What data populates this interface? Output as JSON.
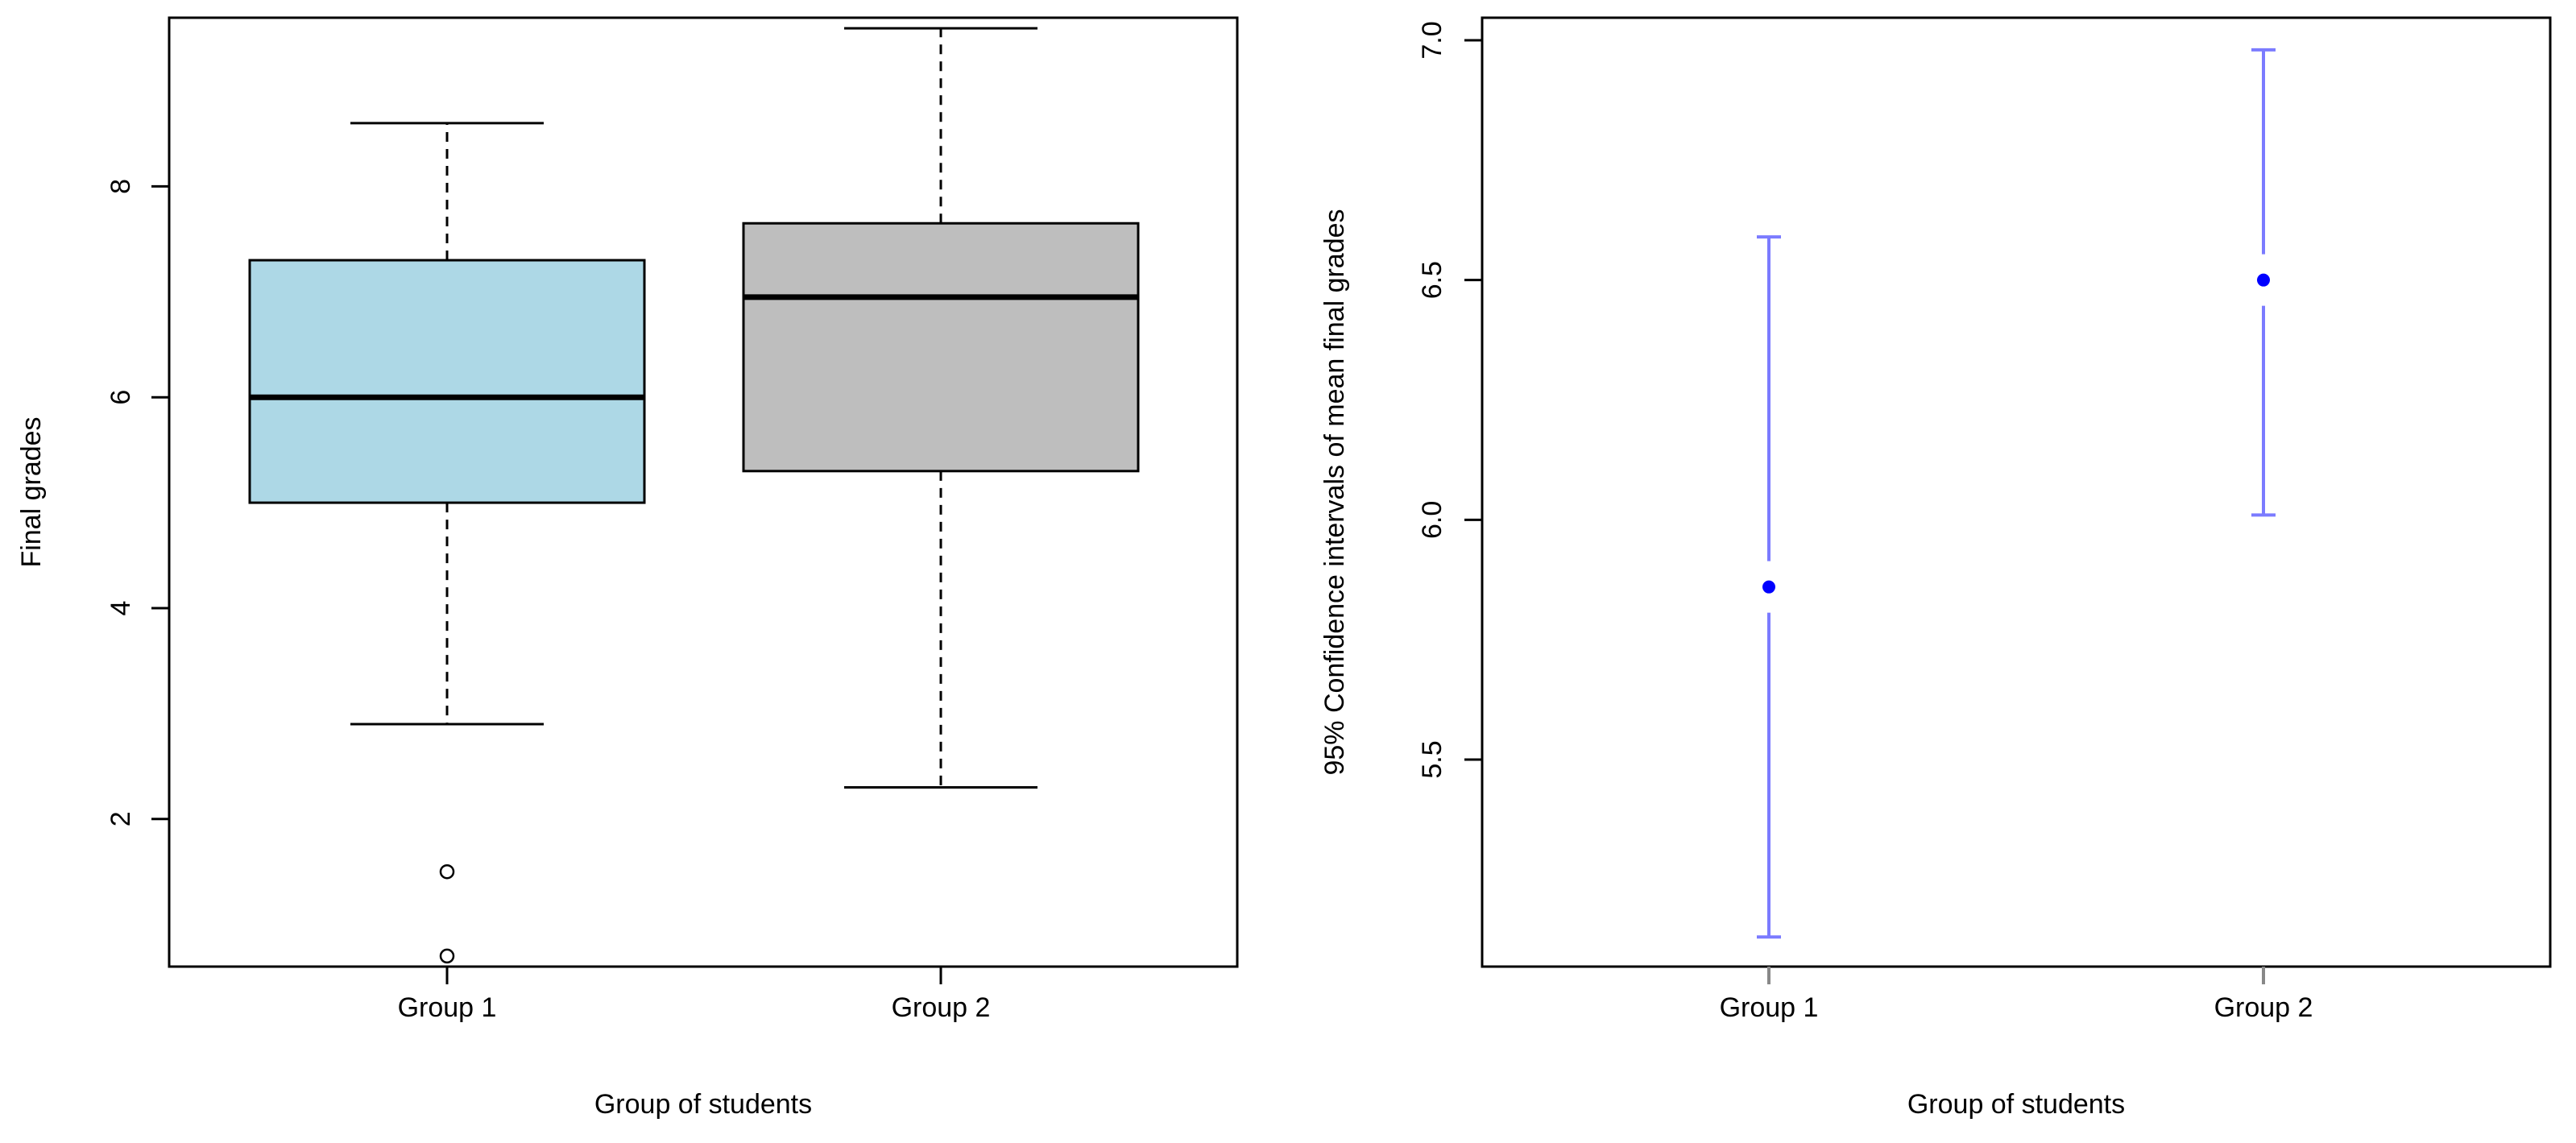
{
  "chart_data": [
    {
      "type": "box",
      "title": "",
      "xlabel": "Group of students",
      "ylabel": "Final grades",
      "categories": [
        "Group 1",
        "Group 2"
      ],
      "ylim": [
        0.6,
        9.6
      ],
      "yticks": [
        "2",
        "4",
        "6",
        "8"
      ],
      "grid": false,
      "boxes": [
        {
          "category": "Group 1",
          "whisker_low": 2.9,
          "q1": 5.0,
          "median": 6.0,
          "q3": 7.3,
          "whisker_high": 8.6,
          "outliers": [
            1.5,
            0.7
          ],
          "fill": "#add8e6"
        },
        {
          "category": "Group 2",
          "whisker_low": 2.3,
          "q1": 5.3,
          "median": 6.95,
          "q3": 7.65,
          "whisker_high": 9.5,
          "outliers": [],
          "fill": "#bebebe"
        }
      ]
    },
    {
      "type": "errorbar",
      "title": "",
      "xlabel": "Group of students",
      "ylabel": "95% Confidence intervals of mean final grades",
      "categories": [
        "Group 1",
        "Group 2"
      ],
      "ylim": [
        5.1,
        7.0
      ],
      "yticks": [
        "5.5",
        "6.0",
        "6.5",
        "7.0"
      ],
      "grid": false,
      "series": [
        {
          "category": "Group 1",
          "mean": 5.86,
          "lower": 5.13,
          "upper": 6.59
        },
        {
          "category": "Group 2",
          "mean": 6.5,
          "lower": 6.01,
          "upper": 6.98
        }
      ],
      "bar_color": "#7b7bff",
      "point_color": "#0000ff"
    }
  ]
}
